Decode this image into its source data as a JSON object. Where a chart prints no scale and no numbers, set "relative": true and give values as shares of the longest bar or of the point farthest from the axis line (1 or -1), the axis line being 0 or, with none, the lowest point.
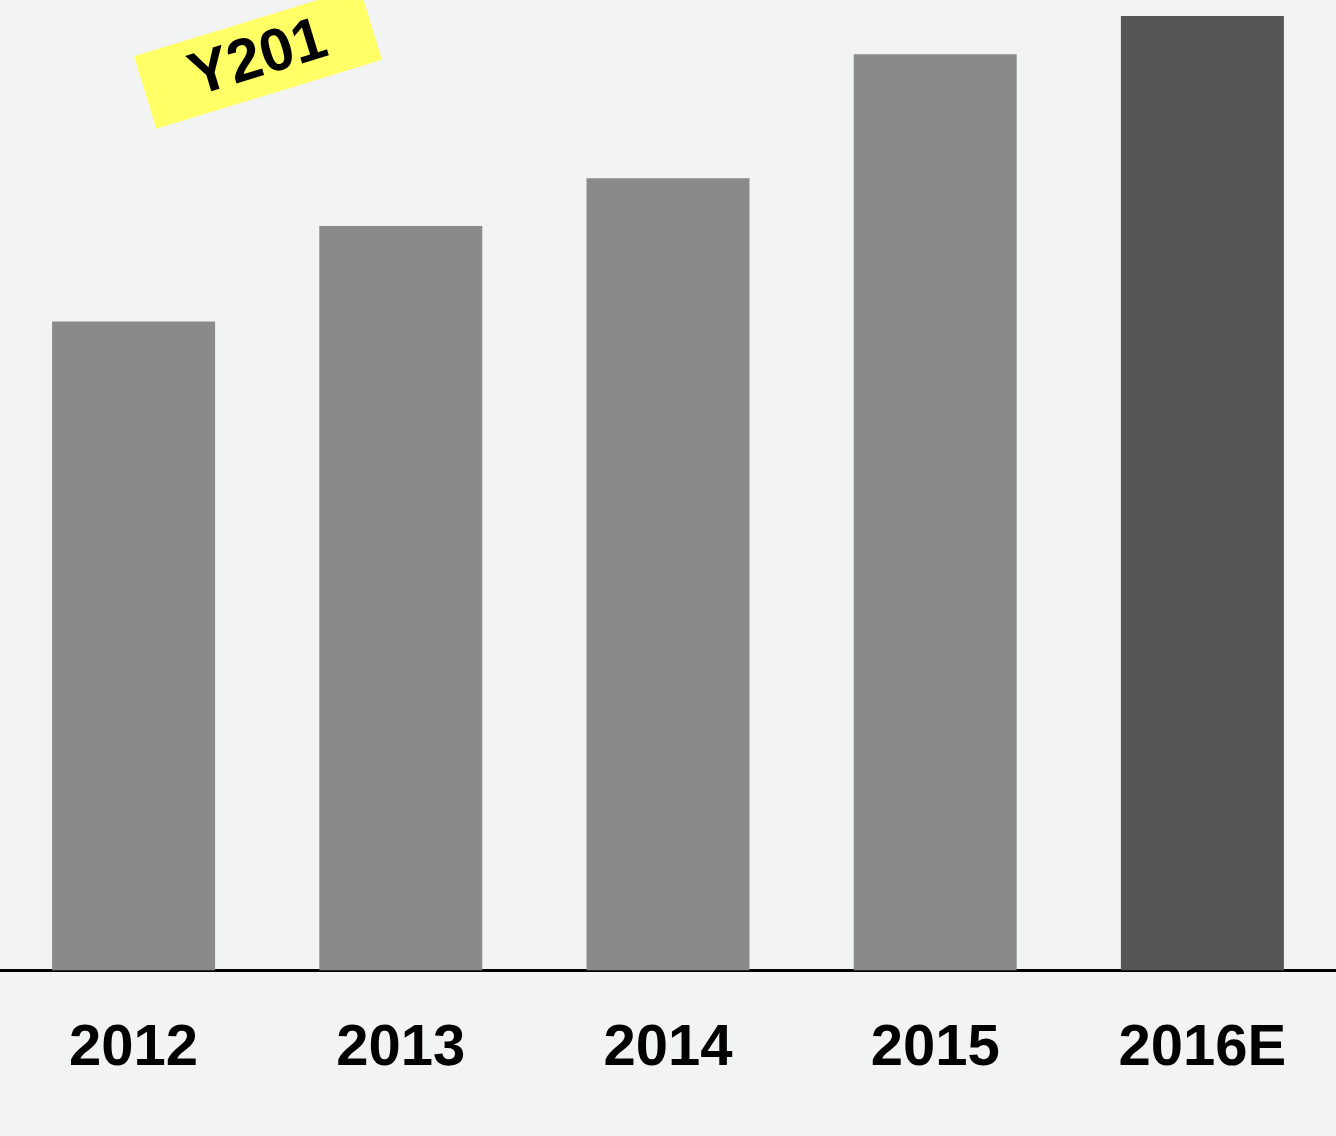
{
  "chart_data": {
    "type": "bar",
    "relative": true,
    "categories": [
      "2012",
      "2013",
      "2014",
      "2015",
      "2016E"
    ],
    "values": [
      0.68,
      0.78,
      0.83,
      0.96,
      1
    ],
    "colors": [
      "#8a8a8a",
      "#8a8a8a",
      "#8a8a8a",
      "#8a8a8a",
      "#555555"
    ],
    "annotations": [
      "Y201"
    ],
    "grid": false,
    "legend": false
  }
}
